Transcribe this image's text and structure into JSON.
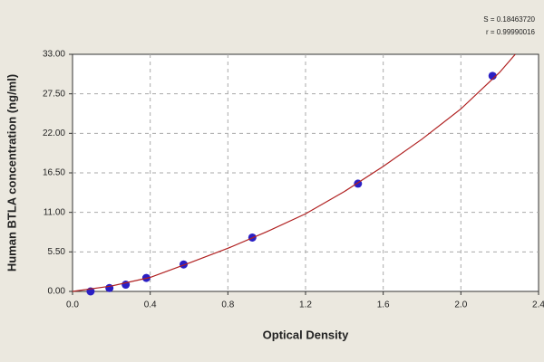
{
  "chart_data": {
    "type": "scatter",
    "xlabel": "Optical Density",
    "ylabel": "Human BTLA concentration (ng/ml)",
    "annotations": [
      "S = 0.18463720",
      "r = 0.99990016"
    ],
    "xlim": [
      0,
      2.4
    ],
    "xticks": [
      {
        "value": 0,
        "label": "0.0"
      },
      0.4,
      0.8,
      1.2,
      1.6,
      {
        "value": 2,
        "label": "2.0"
      },
      2.4
    ],
    "ylim": [
      0,
      33
    ],
    "yticks": [
      {
        "value": 0,
        "label": "0.00"
      },
      {
        "value": 5.5,
        "label": "5.50"
      },
      {
        "value": 11,
        "label": "11.00"
      },
      {
        "value": 16.5,
        "label": "16.50"
      },
      {
        "value": 22,
        "label": "22.00"
      },
      {
        "value": 27.5,
        "label": "27.50"
      },
      {
        "value": 33,
        "label": "33.00"
      }
    ],
    "grid": true,
    "series": [
      {
        "mode": "markers",
        "color": "#2a1fc4",
        "x": [
          0.093,
          0.19,
          0.274,
          0.38,
          0.572,
          0.926,
          1.47,
          2.163
        ],
        "values": [
          0,
          0.47,
          0.94,
          1.88,
          3.75,
          7.5,
          15,
          30
        ]
      },
      {
        "mode": "line",
        "color": "#b02020",
        "x": [
          0,
          0.2,
          0.4,
          0.6,
          0.8,
          1.0,
          1.2,
          1.4,
          1.6,
          1.8,
          2.0,
          2.2,
          2.28
        ],
        "values": [
          0,
          0.75,
          1.95,
          3.95,
          6.0,
          8.3,
          10.8,
          13.9,
          17.4,
          21.2,
          25.4,
          30.5,
          33
        ]
      }
    ]
  }
}
